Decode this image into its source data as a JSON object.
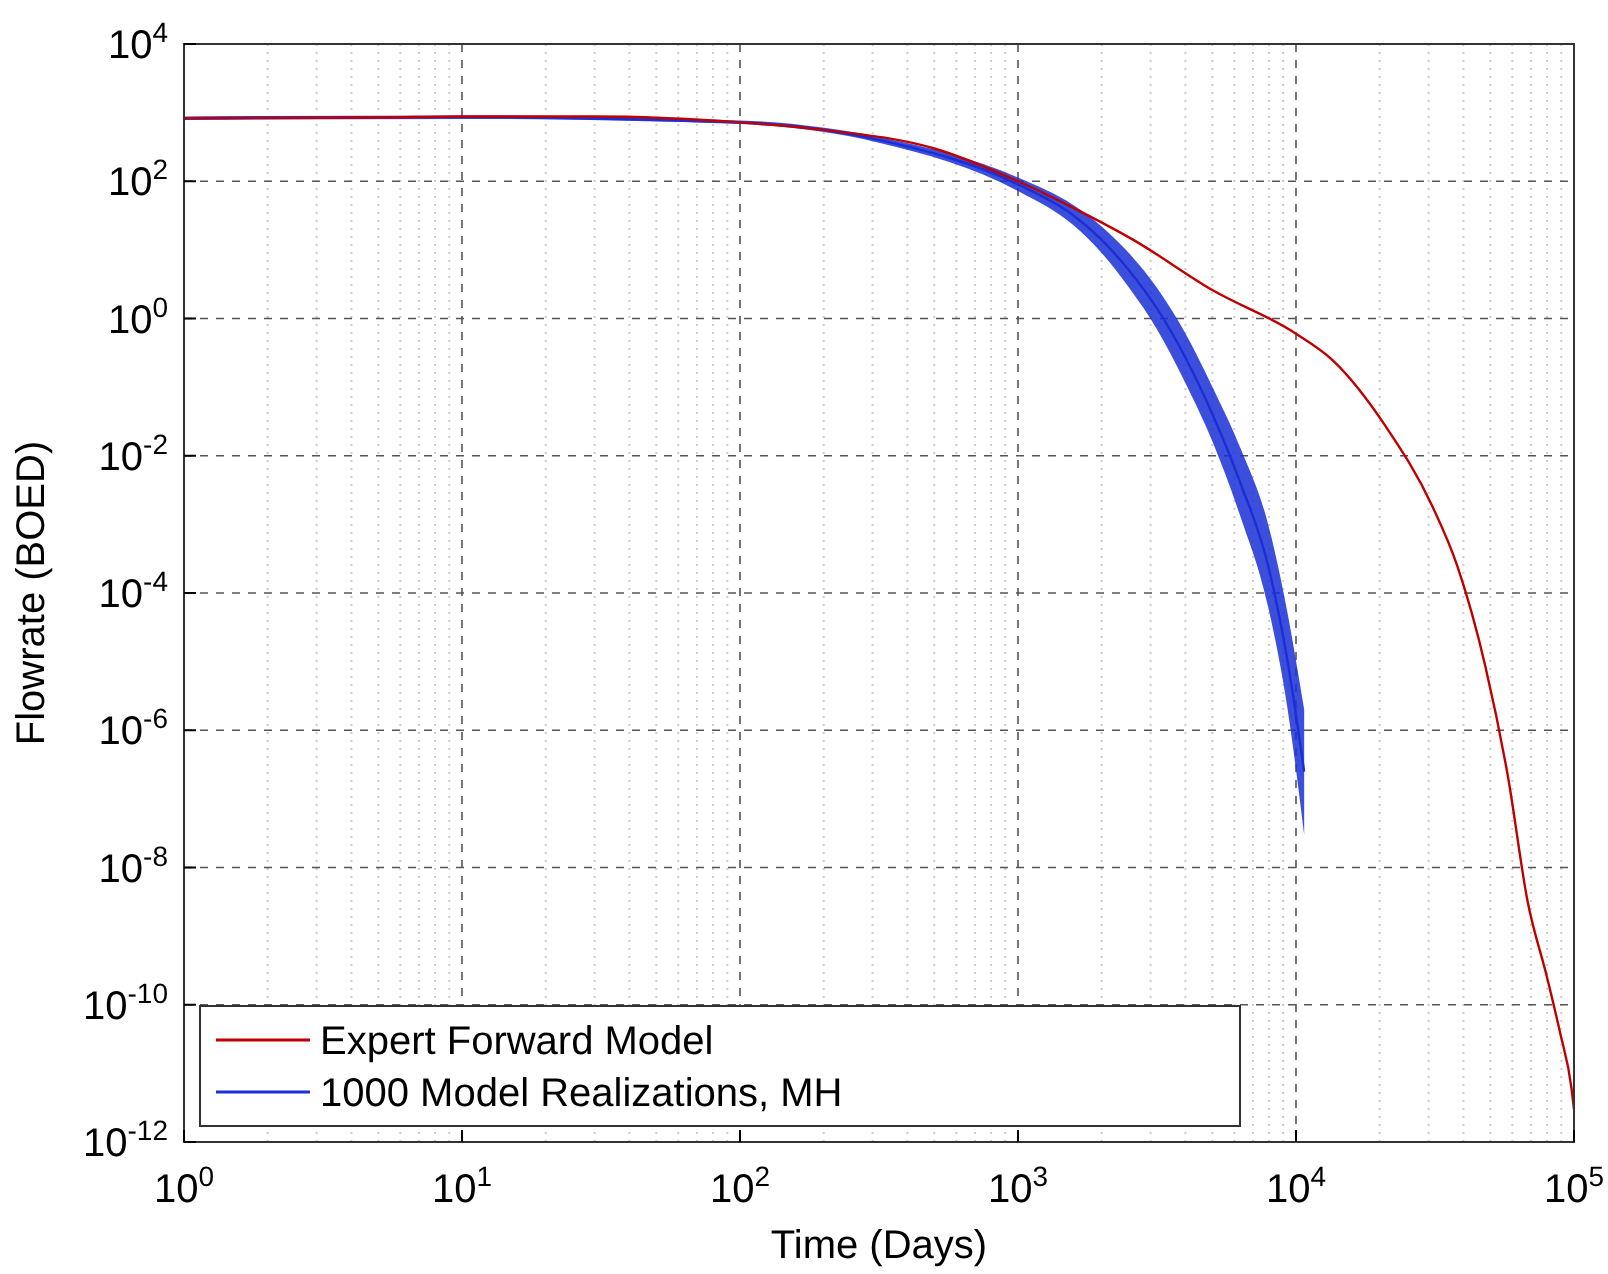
{
  "chart_data": {
    "type": "line",
    "xlabel": "Time (Days)",
    "ylabel": "Flowrate (BOED)",
    "log": "xy",
    "grid": true,
    "legend": "bottom left",
    "line_style": "solid",
    "marker": "none",
    "xlim": [
      1,
      100000
    ],
    "ylim": [
      1e-12,
      10000
    ],
    "xticks": [
      {
        "value": 1,
        "label": "10$^{0}$"
      },
      {
        "value": 10,
        "label": "10$^{1}$"
      },
      {
        "value": 100,
        "label": "10$^{2}$"
      },
      {
        "value": 1000,
        "label": "10$^{3}$"
      },
      {
        "value": 10000,
        "label": "10$^{4}$"
      },
      {
        "value": 100000,
        "label": "10$^{5}$"
      }
    ],
    "yticks": [
      {
        "value": 1e-12,
        "label": "10$^{-12}$"
      },
      {
        "value": 1e-10,
        "label": "10$^{-10}$"
      },
      {
        "value": 1e-08,
        "label": "10$^{-8}$"
      },
      {
        "value": 1e-06,
        "label": "10$^{-6}$"
      },
      {
        "value": 0.0001,
        "label": "10$^{-4}$"
      },
      {
        "value": 0.01,
        "label": "10$^{-2}$"
      },
      {
        "value": 1,
        "label": "10$^{0}$"
      },
      {
        "value": 100,
        "label": "10$^{2}$"
      },
      {
        "value": 10000,
        "label": "10$^{4}$"
      }
    ],
    "series": [
      {
        "name": "Expert Forward Model",
        "color": "#c00000",
        "x": [
          1,
          5,
          10,
          30,
          100,
          200,
          500,
          1000,
          1600,
          2600,
          5000,
          10000,
          13500,
          21000,
          31000,
          38000,
          48000,
          58000,
          68000,
          80000,
          89000,
          98000,
          100000
        ],
        "values": [
          830,
          850,
          880,
          880,
          720,
          560,
          300,
          100,
          40,
          14,
          2.6,
          0.6,
          0.25,
          0.027,
          0.0018,
          0.00025,
          8.5e-06,
          2e-07,
          3.3e-09,
          2.5e-10,
          4e-11,
          6e-12,
          3e-12
        ]
      },
      {
        "name": "1000 Model Realizations, MH",
        "color": "#1a2fd6",
        "x": [
          1,
          10,
          100,
          316,
          1000,
          1580,
          2000,
          2510,
          3160,
          3980,
          5010,
          6310,
          7940,
          9330,
          10700
        ],
        "values": [
          830,
          860,
          720,
          400,
          90,
          32,
          14,
          5,
          1.4,
          0.28,
          0.04,
          0.004,
          0.00025,
          1e-05,
          2.5e-07
        ],
        "lower": [
          780,
          810,
          680,
          365,
          72,
          23,
          9,
          2.8,
          0.7,
          0.12,
          0.016,
          0.0013,
          6.3e-05,
          2e-06,
          3e-08
        ],
        "upper": [
          880,
          910,
          770,
          440,
          113,
          45,
          22,
          8.9,
          2.8,
          0.63,
          0.1,
          0.013,
          0.001,
          5e-05,
          2e-06
        ]
      }
    ]
  }
}
